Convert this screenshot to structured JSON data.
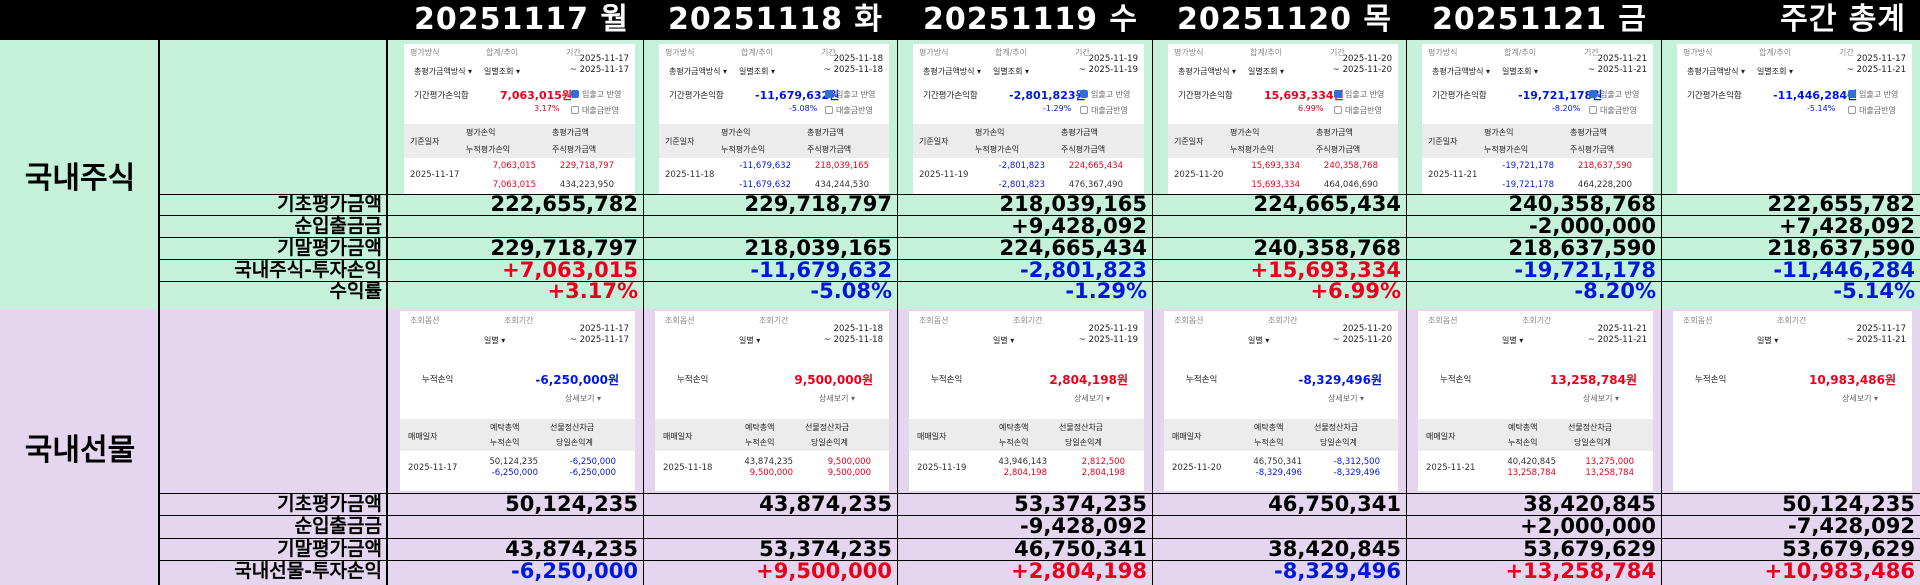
{
  "header": {
    "dates": [
      "20251117 월",
      "20251118 화",
      "20251119 수",
      "20251120 목",
      "20251121 금"
    ],
    "weekly_total": "주간 총계"
  },
  "sections": {
    "stock": {
      "label": "국내주식"
    },
    "futures": {
      "label": "국내선물"
    }
  },
  "stock_rows": [
    {
      "label": "기초평가금액",
      "values": [
        "222,655,782",
        "229,718,797",
        "218,039,165",
        "224,665,434",
        "240,358,768",
        "222,655,782"
      ],
      "tone": [
        "",
        "",
        "",
        "",
        "",
        ""
      ]
    },
    {
      "label": "순입출금금",
      "values": [
        "",
        "",
        "+9,428,092",
        "",
        "-2,000,000",
        "+7,428,092"
      ],
      "tone": [
        "",
        "",
        "",
        "",
        "",
        ""
      ]
    },
    {
      "label": "기말평가금액",
      "values": [
        "229,718,797",
        "218,039,165",
        "224,665,434",
        "240,358,768",
        "218,637,590",
        "218,637,590"
      ],
      "tone": [
        "",
        "",
        "",
        "",
        "",
        ""
      ]
    },
    {
      "label": "국내주식-투자손익",
      "values": [
        "+7,063,015",
        "-11,679,632",
        "-2,801,823",
        "+15,693,334",
        "-19,721,178",
        "-11,446,284"
      ],
      "tone": [
        "red",
        "blue",
        "blue",
        "red",
        "blue",
        "blue"
      ]
    },
    {
      "label": "수익률",
      "values": [
        "+3.17%",
        "-5.08%",
        "-1.29%",
        "+6.99%",
        "-8.20%",
        "-5.14%"
      ],
      "tone": [
        "red",
        "blue",
        "blue",
        "red",
        "blue",
        "blue"
      ]
    }
  ],
  "futures_rows": [
    {
      "label": "기초평가금액",
      "values": [
        "50,124,235",
        "43,874,235",
        "53,374,235",
        "46,750,341",
        "38,420,845",
        "50,124,235"
      ],
      "tone": [
        "",
        "",
        "",
        "",
        "",
        ""
      ]
    },
    {
      "label": "순입출금금",
      "values": [
        "",
        "",
        "-9,428,092",
        "",
        "+2,000,000",
        "-7,428,092"
      ],
      "tone": [
        "",
        "",
        "",
        "",
        "",
        ""
      ]
    },
    {
      "label": "기말평가금액",
      "values": [
        "43,874,235",
        "53,374,235",
        "46,750,341",
        "38,420,845",
        "53,679,629",
        "53,679,629"
      ],
      "tone": [
        "",
        "",
        "",
        "",
        "",
        ""
      ]
    },
    {
      "label": "국내선물-투자손익",
      "values": [
        "-6,250,000",
        "+9,500,000",
        "+2,804,198",
        "-8,329,496",
        "+13,258,784",
        "+10,983,486"
      ],
      "tone": [
        "blue",
        "red",
        "red",
        "blue",
        "red",
        "red"
      ]
    }
  ],
  "stock_panel_labels": {
    "method": "평가방식",
    "sum": "합계/추이",
    "period": "기간",
    "method_value": "총평가금액방식 ▾",
    "view_value": "일별조회 ▾",
    "pnl_label": "기간평가손익합",
    "chk1": "입출고 반영",
    "chk2": "대출금반영",
    "col_date": "기준일자",
    "col_eval": "평가손익",
    "col_total": "총평가금액",
    "col_cum": "누적평가손익",
    "col_stock": "주식평가금액"
  },
  "stock_panels": [
    {
      "d1": "2025-11-17",
      "d2": "~ 2025-11-17",
      "pnl": "7,063,015원",
      "pct": "3.17%",
      "tone": "red",
      "date": "2025-11-17",
      "eval": "7,063,015",
      "cum": "7,063,015",
      "total": "229,718,797",
      "stock": "434,223,950"
    },
    {
      "d1": "2025-11-18",
      "d2": "~ 2025-11-18",
      "pnl": "-11,679,632원",
      "pct": "-5.08%",
      "tone": "blue",
      "date": "2025-11-18",
      "eval": "-11,679,632",
      "cum": "-11,679,632",
      "total": "218,039,165",
      "stock": "434,244,530"
    },
    {
      "d1": "2025-11-19",
      "d2": "~ 2025-11-19",
      "pnl": "-2,801,823원",
      "pct": "-1.29%",
      "tone": "blue",
      "date": "2025-11-19",
      "eval": "-2,801,823",
      "cum": "-2,801,823",
      "total": "224,665,434",
      "stock": "476,367,490"
    },
    {
      "d1": "2025-11-20",
      "d2": "~ 2025-11-20",
      "pnl": "15,693,334원",
      "pct": "6.99%",
      "tone": "red",
      "date": "2025-11-20",
      "eval": "15,693,334",
      "cum": "15,693,334",
      "total": "240,358,768",
      "stock": "464,046,690"
    },
    {
      "d1": "2025-11-21",
      "d2": "~ 2025-11-21",
      "pnl": "-19,721,178원",
      "pct": "-8.20%",
      "tone": "blue",
      "date": "2025-11-21",
      "eval": "-19,721,178",
      "cum": "-19,721,178",
      "total": "218,637,590",
      "stock": "464,228,200"
    },
    {
      "d1": "2025-11-17",
      "d2": "~ 2025-11-21",
      "pnl": "-11,446,284원",
      "pct": "-5.14%",
      "tone": "blue",
      "summary": true
    }
  ],
  "futures_panel_labels": {
    "opt": "조회옵션",
    "period": "조회기간",
    "view_value": "일별 ▾",
    "cum_label": "누적손익",
    "more": "상세보기 ▾",
    "col_date": "매매일자",
    "col_deposit": "예탁총액",
    "col_settle": "선물정산차금",
    "col_cum": "누적손익",
    "col_day": "당일손익계"
  },
  "futures_panels": [
    {
      "d1": "2025-11-17",
      "d2": "~ 2025-11-17",
      "cum": "-6,250,000원",
      "tone": "blue",
      "date": "2025-11-17",
      "deposit": "50,124,235",
      "dcum": "-6,250,000",
      "dtone": "blue",
      "settle": "-6,250,000",
      "day": "-6,250,000",
      "stone": "blue"
    },
    {
      "d1": "2025-11-18",
      "d2": "~ 2025-11-18",
      "cum": "9,500,000원",
      "tone": "red",
      "date": "2025-11-18",
      "deposit": "43,874,235",
      "dcum": "9,500,000",
      "dtone": "red",
      "settle": "9,500,000",
      "day": "9,500,000",
      "stone": "red"
    },
    {
      "d1": "2025-11-19",
      "d2": "~ 2025-11-19",
      "cum": "2,804,198원",
      "tone": "red",
      "date": "2025-11-19",
      "deposit": "43,946,143",
      "dcum": "2,804,198",
      "dtone": "red",
      "settle": "2,812,500",
      "day": "2,804,198",
      "stone": "red"
    },
    {
      "d1": "2025-11-20",
      "d2": "~ 2025-11-20",
      "cum": "-8,329,496원",
      "tone": "blue",
      "date": "2025-11-20",
      "deposit": "46,750,341",
      "dcum": "-8,329,496",
      "dtone": "blue",
      "settle": "-8,312,500",
      "day": "-8,329,496",
      "stone": "blue"
    },
    {
      "d1": "2025-11-21",
      "d2": "~ 2025-11-21",
      "cum": "13,258,784원",
      "tone": "red",
      "date": "2025-11-21",
      "deposit": "40,420,845",
      "dcum": "13,258,784",
      "dtone": "red",
      "settle": "13,275,000",
      "day": "13,258,784",
      "stone": "red"
    },
    {
      "d1": "2025-11-17",
      "d2": "~ 2025-11-21",
      "cum": "10,983,486원",
      "tone": "red",
      "summary": true
    }
  ],
  "colors": {
    "positive": "#e8001c",
    "negative": "#0019d8",
    "stock_bg": "#c5f0da",
    "futures_bg": "#e5d6ef"
  }
}
